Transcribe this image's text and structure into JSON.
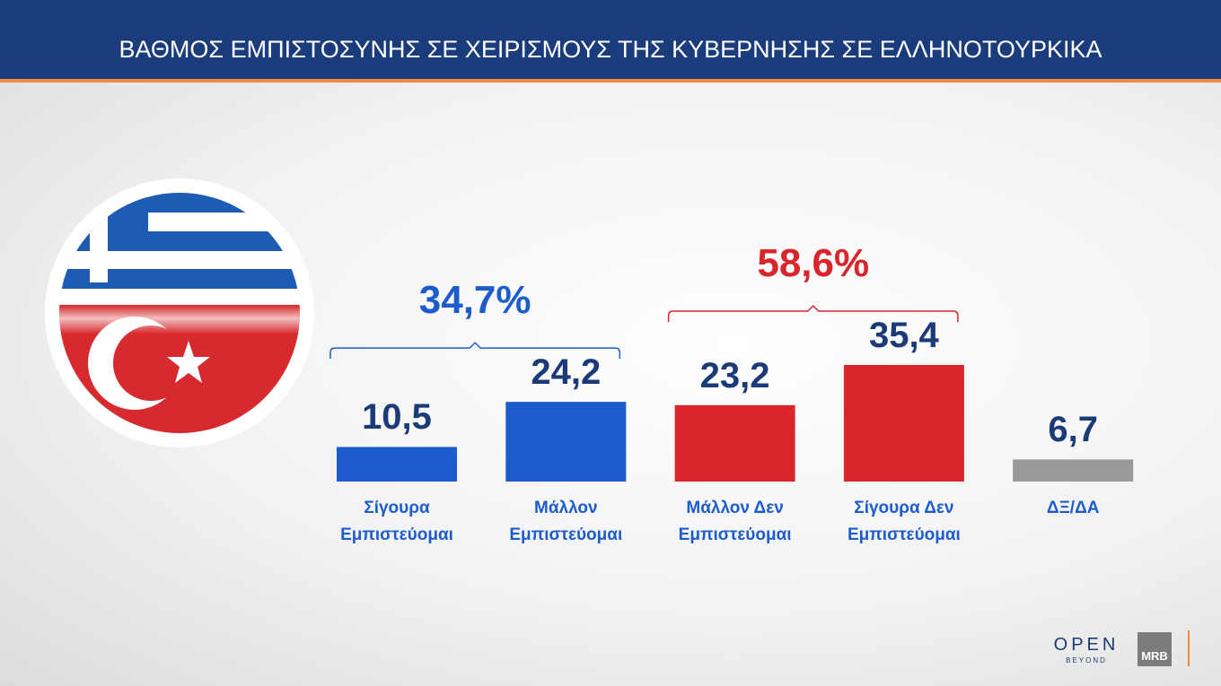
{
  "title": "ΒΑΘΜΟΣ ΕΜΠΙΣΤΟΣΥΝΗΣ ΣΕ ΧΕΙΡΙΣΜΟΥΣ ΤΗΣ ΚΥΒΕΡΝΗΣΗΣ ΣΕ ΕΛΛΗΝΟΤΟΥΡΚΙΚΑ",
  "chart_data": {
    "type": "bar",
    "categories": [
      "Σίγουρα Εμπιστεύομαι",
      "Μάλλον Εμπιστεύομαι",
      "Μάλλον Δεν Εμπιστεύομαι",
      "Σίγουρα Δεν Εμπιστεύομαι",
      "ΔΞ/ΔΑ"
    ],
    "values": [
      10.5,
      24.2,
      23.2,
      35.4,
      6.7
    ],
    "value_labels": [
      "10,5",
      "24,2",
      "23,2",
      "35,4",
      "6,7"
    ],
    "colors": [
      "#1c5ccc",
      "#1c5ccc",
      "#d9262b",
      "#d9262b",
      "#9a9a9a"
    ],
    "groups": [
      {
        "value": 34.7,
        "label": "34,7%",
        "color": "#1c5ccc",
        "span": [
          0,
          1
        ]
      },
      {
        "value": 58.6,
        "label": "58,6%",
        "color": "#d9262b",
        "span": [
          2,
          3
        ]
      }
    ]
  },
  "branding": {
    "logo": "OPEN",
    "tagline": "BEYOND",
    "pollster": "MRB"
  }
}
